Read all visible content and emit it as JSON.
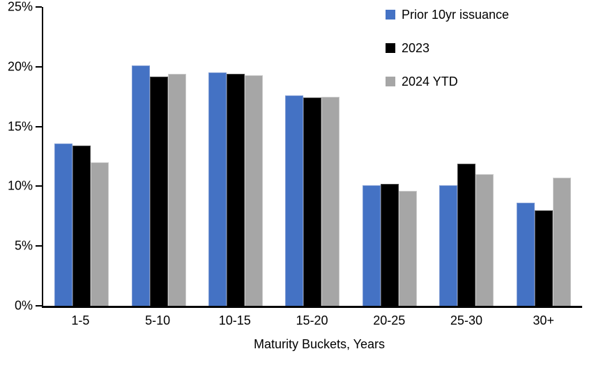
{
  "figure": {
    "background": "#FFFFFF",
    "axis_color": "#000000",
    "text_color": "#000000"
  },
  "chart_data": {
    "type": "bar",
    "title": "",
    "xlabel": "Maturity Buckets, Years",
    "ylabel": "",
    "ylim": [
      0,
      25
    ],
    "y_ticks": [
      0,
      5,
      10,
      15,
      20,
      25
    ],
    "y_tick_labels": [
      "0%",
      "5%",
      "10%",
      "15%",
      "20%",
      "25%"
    ],
    "grid": false,
    "legend_position": "top-right",
    "categories": [
      "1-5",
      "5-10",
      "10-15",
      "15-20",
      "20-25",
      "25-30",
      "30+"
    ],
    "series": [
      {
        "name": "Prior 10yr issuance",
        "color": "#4472C4",
        "edge_color": "#7C99D3",
        "values": [
          13.6,
          20.1,
          19.5,
          17.6,
          10.1,
          10.1,
          8.6
        ]
      },
      {
        "name": "2023",
        "color": "#000000",
        "edge_color": "#4A4A4A",
        "values": [
          13.4,
          19.2,
          19.4,
          17.4,
          10.2,
          11.9,
          8.0
        ]
      },
      {
        "name": "2024 YTD",
        "color": "#A6A6A6",
        "edge_color": "#CCCCCC",
        "values": [
          12.0,
          19.4,
          19.3,
          17.5,
          9.6,
          11.0,
          10.7
        ]
      }
    ]
  }
}
